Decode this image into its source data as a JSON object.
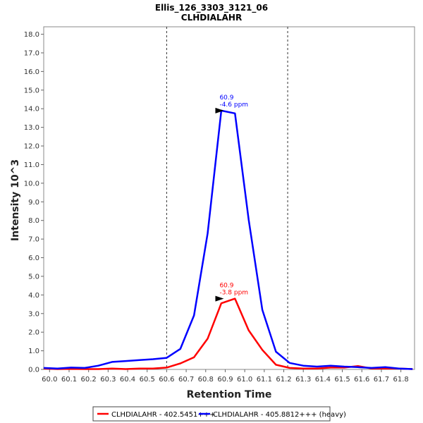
{
  "chart_data": {
    "type": "line",
    "title": "Ellis_126_3303_3121_06",
    "subtitle": "CLHDIALAHR",
    "xlabel": "Retention Time",
    "ylabel": "Intensity 10^3",
    "xlim": [
      59.97,
      61.87
    ],
    "ylim": [
      0,
      18.4
    ],
    "x_ticks": [
      "60.0",
      "60.1",
      "60.2",
      "60.3",
      "60.4",
      "60.5",
      "60.6",
      "60.7",
      "60.8",
      "60.9",
      "61.0",
      "61.1",
      "61.2",
      "61.3",
      "61.4",
      "61.5",
      "61.6",
      "61.7",
      "61.8"
    ],
    "y_ticks": [
      "0.0",
      "1.0",
      "2.0",
      "3.0",
      "4.0",
      "5.0",
      "6.0",
      "7.0",
      "8.0",
      "9.0",
      "10.0",
      "11.0",
      "12.0",
      "13.0",
      "14.0",
      "15.0",
      "16.0",
      "17.0",
      "18.0"
    ],
    "integration_bounds": [
      60.6,
      61.22
    ],
    "grid": false,
    "legend_position": "bottom",
    "series": [
      {
        "name": "CLHDIALAHR - 402.5451+++",
        "color": "#ff0000",
        "x": [
          59.97,
          60.04,
          60.11,
          60.18,
          60.25,
          60.32,
          60.39,
          60.46,
          60.53,
          60.6,
          60.67,
          60.74,
          60.81,
          60.88,
          60.95,
          61.02,
          61.09,
          61.16,
          61.23,
          61.3,
          61.37,
          61.44,
          61.51,
          61.58,
          61.65,
          61.72,
          61.79,
          61.86
        ],
        "y": [
          0.05,
          0.02,
          0.03,
          0.02,
          0.02,
          0.05,
          0.02,
          0.05,
          0.05,
          0.1,
          0.32,
          0.65,
          1.65,
          3.55,
          3.8,
          2.1,
          1.05,
          0.25,
          0.08,
          0.05,
          0.05,
          0.1,
          0.1,
          0.18,
          0.05,
          0.05,
          0.05,
          0.02
        ]
      },
      {
        "name": "CLHDIALAHR - 405.8812+++ (heavy)",
        "color": "#0000ff",
        "x": [
          59.97,
          60.04,
          60.11,
          60.18,
          60.25,
          60.32,
          60.39,
          60.46,
          60.53,
          60.6,
          60.67,
          60.74,
          60.81,
          60.88,
          60.95,
          61.02,
          61.09,
          61.16,
          61.23,
          61.3,
          61.37,
          61.44,
          61.51,
          61.58,
          61.65,
          61.72,
          61.79,
          61.86
        ],
        "y": [
          0.08,
          0.05,
          0.1,
          0.08,
          0.2,
          0.4,
          0.45,
          0.5,
          0.55,
          0.62,
          1.1,
          2.9,
          7.3,
          13.9,
          13.75,
          8.05,
          3.2,
          0.95,
          0.35,
          0.2,
          0.15,
          0.2,
          0.15,
          0.12,
          0.08,
          0.12,
          0.05,
          0.02
        ]
      }
    ],
    "annotations": [
      {
        "series": 1,
        "x": 60.9,
        "y": 13.9,
        "label_rt": "60.9",
        "label_ppm": "-4.6 ppm"
      },
      {
        "series": 0,
        "x": 60.9,
        "y": 3.8,
        "label_rt": "60.9",
        "label_ppm": "-3.8 ppm"
      }
    ]
  }
}
